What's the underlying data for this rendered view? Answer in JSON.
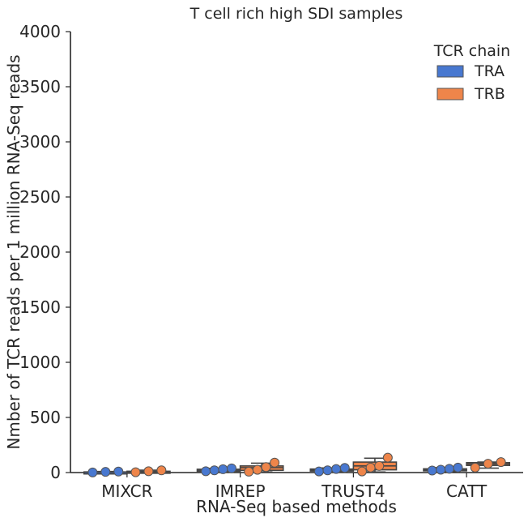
{
  "chart_data": {
    "type": "box",
    "title": "T cell rich high SDI samples",
    "xlabel": "RNA-Seq based methods",
    "ylabel": "Nmber of TCR reads per 1 million RNA-Seq reads",
    "categories": [
      "MIXCR",
      "IMREP",
      "TRUST4",
      "CATT"
    ],
    "ylim": [
      0,
      4000
    ],
    "yticks": [
      "0",
      "500",
      "1000",
      "1500",
      "2000",
      "2500",
      "3000",
      "3500",
      "4000"
    ],
    "grid": false,
    "legend": {
      "title": "TCR chain",
      "placement": "top-right"
    },
    "series": [
      {
        "name": "TRA",
        "color": "#4878d0",
        "boxes": [
          {
            "category": "MIXCR",
            "q1": 1,
            "median": 3,
            "q3": 6,
            "whisker_low": 0,
            "whisker_high": 10,
            "points": [
              1,
              6,
              9
            ]
          },
          {
            "category": "IMREP",
            "q1": 12,
            "median": 22,
            "q3": 30,
            "whisker_low": 5,
            "whisker_high": 38,
            "points": [
              12,
              20,
              30,
              38
            ]
          },
          {
            "category": "TRUST4",
            "q1": 15,
            "median": 24,
            "q3": 32,
            "whisker_low": 5,
            "whisker_high": 42,
            "points": [
              10,
              20,
              32,
              42
            ]
          },
          {
            "category": "CATT",
            "q1": 18,
            "median": 26,
            "q3": 34,
            "whisker_low": 10,
            "whisker_high": 45,
            "points": [
              18,
              26,
              34,
              45
            ]
          }
        ]
      },
      {
        "name": "TRB",
        "color": "#ee854a",
        "boxes": [
          {
            "category": "MIXCR",
            "q1": 2,
            "median": 6,
            "q3": 12,
            "whisker_low": 0,
            "whisker_high": 22,
            "points": [
              3,
              12,
              20
            ]
          },
          {
            "category": "IMREP",
            "q1": 20,
            "median": 45,
            "q3": 60,
            "whisker_low": 5,
            "whisker_high": 85,
            "points": [
              8,
              25,
              50,
              90
            ]
          },
          {
            "category": "TRUST4",
            "q1": 25,
            "median": 60,
            "q3": 95,
            "whisker_low": 5,
            "whisker_high": 130,
            "points": [
              10,
              45,
              60,
              135
            ]
          },
          {
            "category": "CATT",
            "q1": 65,
            "median": 78,
            "q3": 90,
            "whisker_low": 40,
            "whisker_high": 95,
            "points": [
              45,
              80,
              95
            ]
          }
        ]
      }
    ]
  }
}
